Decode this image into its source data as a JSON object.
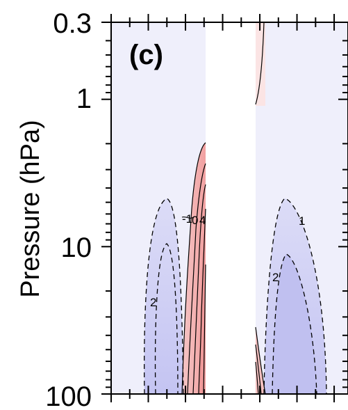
{
  "chart_data": {
    "type": "contour",
    "panel_label": "(c)",
    "ylabel": "Pressure (hPa)",
    "xlabel": "",
    "y_scale": "log",
    "y_axis_inverted": true,
    "ylim": [
      100,
      0.3
    ],
    "y_ticks": [
      0.3,
      1,
      10,
      100
    ],
    "y_tick_labels": [
      "0.3",
      "1",
      "10",
      "100"
    ],
    "x_tick_labels": [],
    "line_style": {
      "positive": "solid",
      "negative": "dashed"
    },
    "fill_colors": {
      "positive": "#f2a8a8",
      "negative": "#c8c8f4",
      "background": "#efeffb"
    },
    "masked_band": "blank column near centre where no values are plotted",
    "contour_labels": [
      {
        "text": "2",
        "level": -2
      },
      {
        "text": "1",
        "level": -1
      },
      {
        "text": "2",
        "level": -2
      },
      {
        "text": "-1",
        "level": -1
      },
      {
        "text": "0",
        "level": 0
      },
      {
        "text": "4",
        "level": 4
      }
    ]
  }
}
